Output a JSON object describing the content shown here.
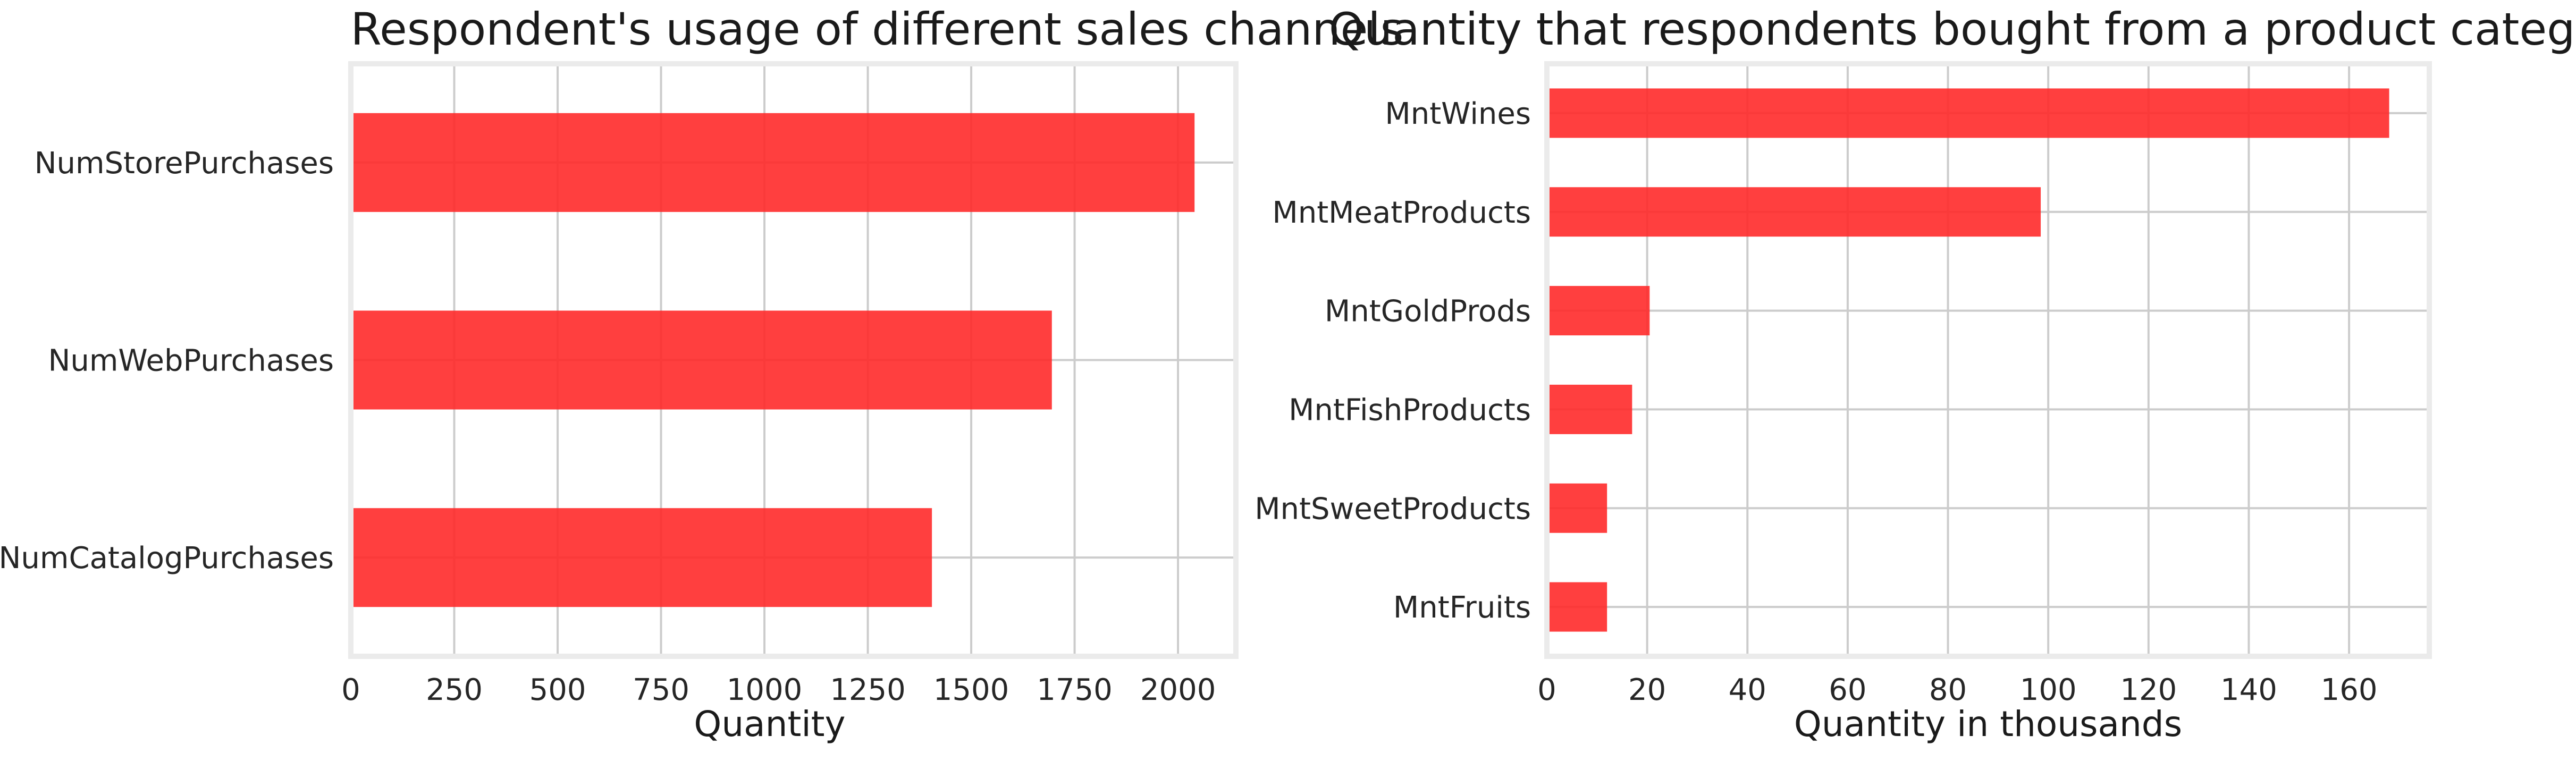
{
  "chart_data": [
    {
      "type": "bar",
      "orientation": "horizontal",
      "title": "Respondent's usage of different sales channels",
      "xlabel": "Quantity",
      "ylabel": "",
      "categories": [
        "NumStorePurchases",
        "NumWebPurchases",
        "NumCatalogPurchases"
      ],
      "values": [
        2040,
        1695,
        1405
      ],
      "xlim": [
        0,
        2140
      ],
      "xticks": [
        "0",
        "250",
        "500",
        "750",
        "1000",
        "1250",
        "1500",
        "1750",
        "2000"
      ],
      "grid": true,
      "color": "#ff2a2a"
    },
    {
      "type": "bar",
      "orientation": "horizontal",
      "title": "Quantity that respondents bought from a product category",
      "xlabel": "Quantity in thousands",
      "ylabel": "",
      "categories": [
        "MntWines",
        "MntMeatProducts",
        "MntGoldProds",
        "MntFishProducts",
        "MntSweetProducts",
        "MntFruits"
      ],
      "values": [
        168,
        98.5,
        20.5,
        17,
        12,
        12
      ],
      "xlim": [
        0,
        176
      ],
      "xticks": [
        "0",
        "20",
        "40",
        "60",
        "80",
        "100",
        "120",
        "140",
        "160"
      ],
      "grid": true,
      "color": "#ff2a2a"
    }
  ]
}
